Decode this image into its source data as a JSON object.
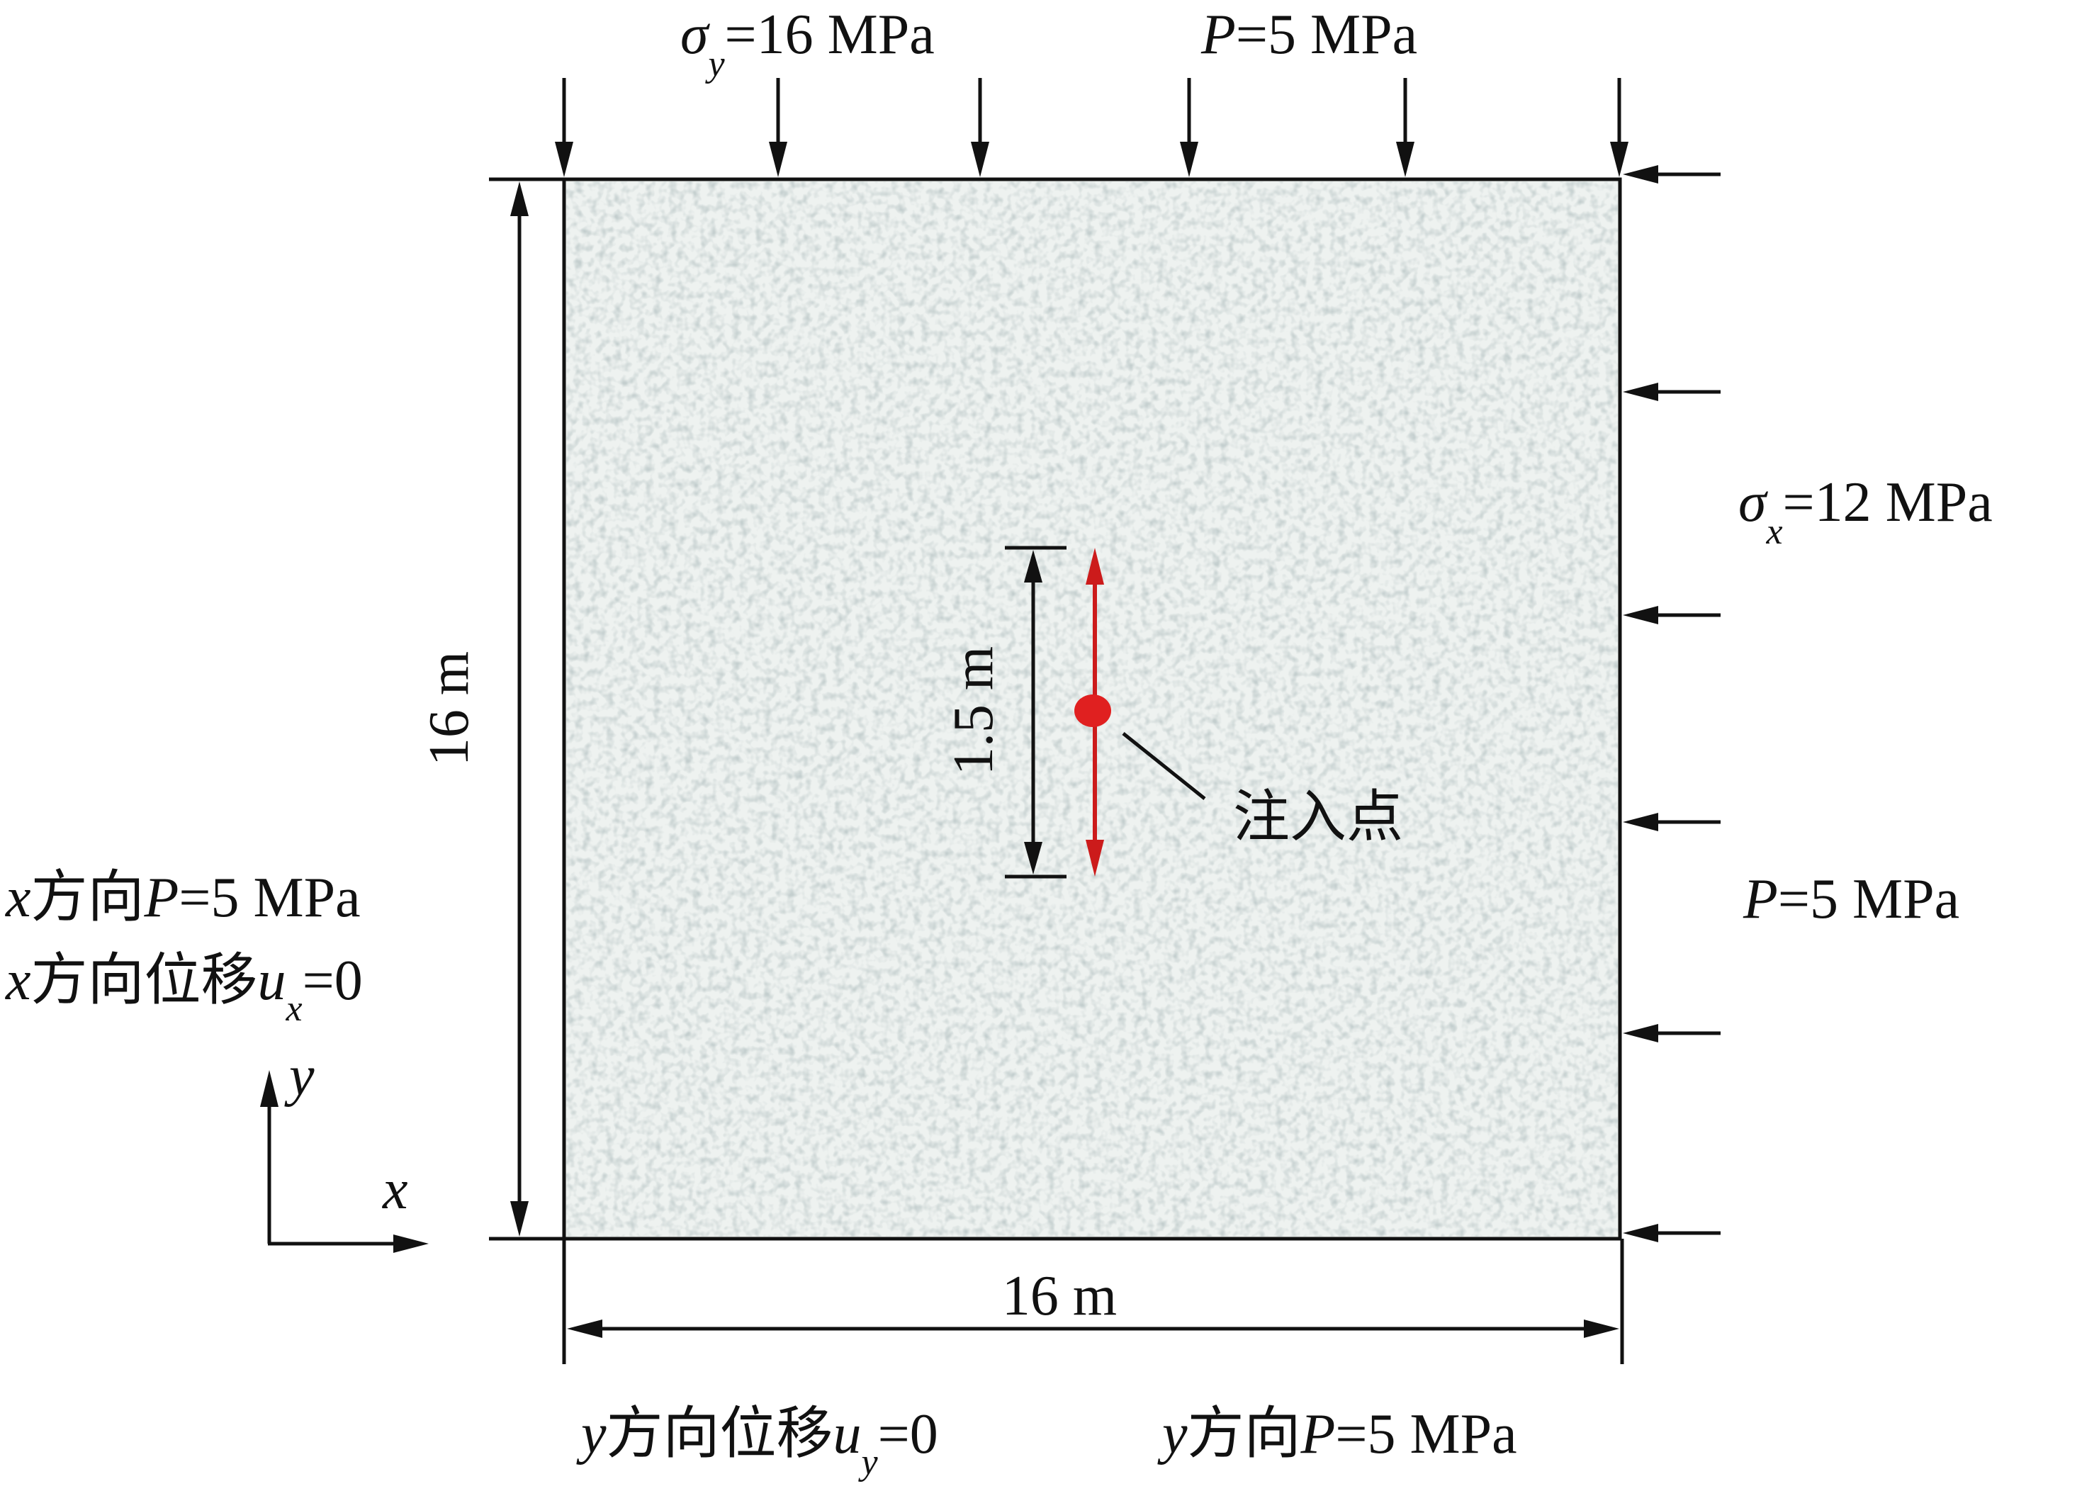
{
  "domain": "Diagram",
  "labels": {
    "top_sigma_symbol": "σ",
    "top_sigma_sub": "y",
    "top_sigma_value": "=16 MPa",
    "top_p_symbol": "P",
    "top_p_value": "=5 MPa",
    "right_sigma_symbol": "σ",
    "right_sigma_sub": "x",
    "right_sigma_value": "=12 MPa",
    "right_p_symbol": "P",
    "right_p_value": "=5 MPa",
    "left_height": "16 m",
    "bottom_width": "16 m",
    "crack_length": "1.5 m",
    "injection_point": "注入点",
    "left_line1_var": "x",
    "left_line1_text": "方向",
    "left_line1_p": "P",
    "left_line1_value": "=5 MPa",
    "left_line2_var": "x",
    "left_line2_text": "方向位移",
    "left_line2_u": "u",
    "left_line2_sub": "x",
    "left_line2_value": "=0",
    "bottom_line1_var": "y",
    "bottom_line1_text": "方向位移",
    "bottom_line1_u": "u",
    "bottom_line1_sub": "y",
    "bottom_line1_value": "=0",
    "bottom_line2_var": "y",
    "bottom_line2_text": "方向",
    "bottom_line2_p": "P",
    "bottom_line2_value": "=5 MPa",
    "axis_y": "y",
    "axis_x": "x"
  },
  "colors": {
    "crack": "#cc1b1b",
    "injection_dot": "#e02020",
    "domain_fill": "#e9eeec",
    "stroke": "#111111"
  }
}
